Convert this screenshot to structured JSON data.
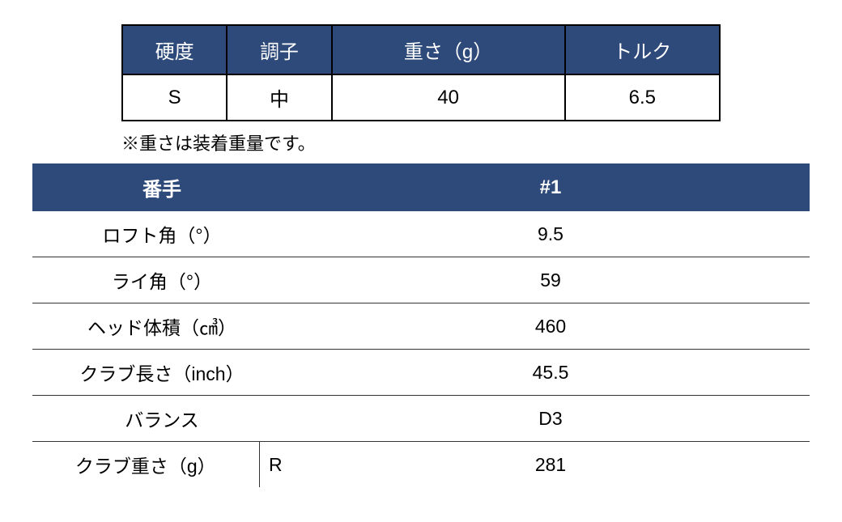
{
  "table1": {
    "headers": [
      "硬度",
      "調子",
      "重さ（g）",
      "トルク"
    ],
    "row": [
      "S",
      "中",
      "40",
      "6.5"
    ],
    "header_bg_color": "#2e4a7a",
    "header_text_color": "#ffffff",
    "border_color": "#000000",
    "font_size": 24
  },
  "note": "※重さは装着重量です。",
  "table2": {
    "header_left": "番手",
    "header_right": "#1",
    "header_bg_color": "#2e4a7a",
    "header_text_color": "#ffffff",
    "row_border_color": "#333333",
    "font_size": 23,
    "rows": [
      {
        "label": "ロフト角（°）",
        "sub": "",
        "value": "9.5"
      },
      {
        "label": "ライ角（°）",
        "sub": "",
        "value": "59"
      },
      {
        "label": "ヘッド体積（㎤）",
        "sub": "",
        "value": "460"
      },
      {
        "label": "クラブ長さ（inch）",
        "sub": "",
        "value": "45.5"
      },
      {
        "label": "バランス",
        "sub": "",
        "value": "D3"
      },
      {
        "label": "クラブ重さ（g）",
        "sub": "R",
        "value": "281"
      }
    ]
  }
}
